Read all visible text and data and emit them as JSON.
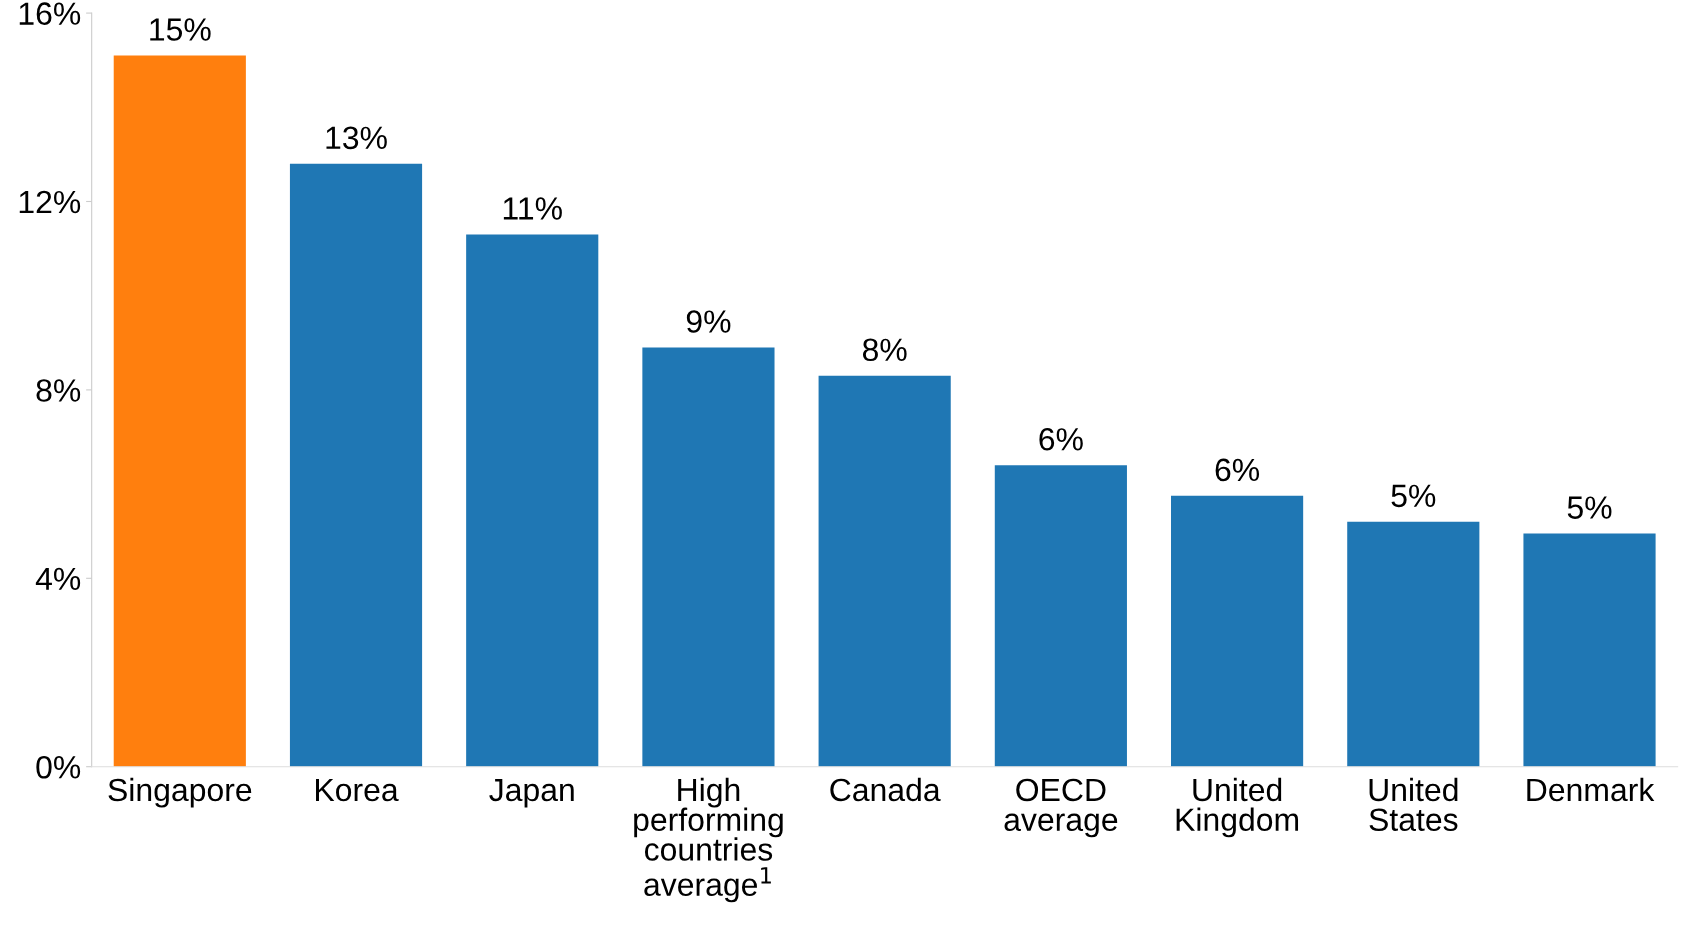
{
  "chart_data": {
    "type": "bar",
    "categories": [
      "Singapore",
      "Korea",
      "Japan",
      "High\nperforming\ncountries\naverage$^{1}$",
      "Canada",
      "OECD\naverage",
      "United\nKingdom",
      "United\nStates",
      "Denmark"
    ],
    "values": [
      15.1,
      12.8,
      11.3,
      8.9,
      8.3,
      6.4,
      5.75,
      5.2,
      4.95
    ],
    "colors": [
      "#ff7f0e",
      "#1f77b4",
      "#1f77b4",
      "#1f77b4",
      "#1f77b4",
      "#1f77b4",
      "#1f77b4",
      "#1f77b4",
      "#1f77b4"
    ],
    "value_labels": [
      "15%",
      "13%",
      "11%",
      "9%",
      "8%",
      "6%",
      "6%",
      "5%",
      "5%"
    ],
    "ylim": [
      0,
      16
    ],
    "yticks": [
      {
        "value": 0,
        "label": "0%"
      },
      {
        "value": 4,
        "label": "4%"
      },
      {
        "value": 8,
        "label": "8%"
      },
      {
        "value": 12,
        "label": "12%"
      },
      {
        "value": 16,
        "label": "16%"
      }
    ],
    "grid": false,
    "legend": false
  }
}
